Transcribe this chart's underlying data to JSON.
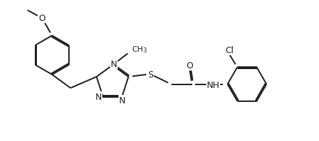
{
  "figure_width": 4.58,
  "figure_height": 2.03,
  "dpi": 100,
  "bg_color": "#ffffff",
  "bond_color": "#1a1a1a",
  "bond_lw": 1.4,
  "font_size": 8.5,
  "xlim": [
    0,
    9.5
  ],
  "ylim": [
    0,
    4.2
  ]
}
